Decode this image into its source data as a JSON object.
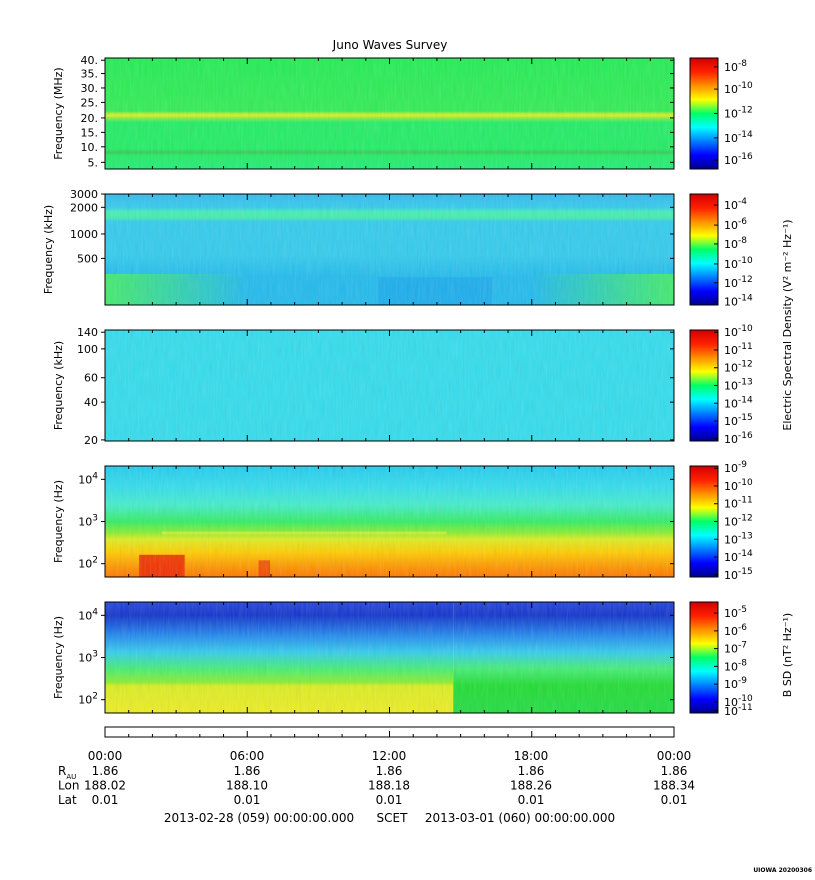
{
  "title": "Juno Waves Survey",
  "stamp": "UIOWA 20200306",
  "scet_label": "SCET",
  "start_label": "2013-02-28 (059) 00:00:00.000",
  "end_label": "2013-03-01 (060) 00:00:00.000",
  "colorbar_axis_labels": {
    "electric": "Electric Spectral Density (V² m⁻² Hz⁻¹)",
    "magnetic": "B SD (nT² Hz⁻¹)"
  },
  "ephemeris": {
    "time_ticks": [
      "00:00",
      "06:00",
      "12:00",
      "18:00",
      "00:00"
    ],
    "rows": [
      {
        "label": "RAU",
        "label_main": "R",
        "label_sub": "AU",
        "values": [
          "1.86",
          "1.86",
          "1.86",
          "1.86",
          "1.86"
        ]
      },
      {
        "label": "Lon",
        "label_main": "Lon",
        "label_sub": "",
        "values": [
          "188.02",
          "188.10",
          "188.18",
          "188.26",
          "188.34"
        ]
      },
      {
        "label": "Lat",
        "label_main": "Lat",
        "label_sub": "",
        "values": [
          "0.01",
          "0.01",
          "0.01",
          "0.01",
          "0.01"
        ]
      }
    ]
  },
  "chart_data": [
    {
      "type": "heatmap",
      "title": "Juno Waves Survey",
      "ylabel": "Frequency (MHz)",
      "yscale": "linear",
      "ylim": [
        3.5,
        41
      ],
      "y_ticks": [
        "40.",
        "35.",
        "30.",
        "25.",
        "20.",
        "15.",
        "10.",
        "5."
      ],
      "colorbar": {
        "ticks": [
          "10-8",
          "10-10",
          "10-12",
          "10-14",
          "10-16"
        ]
      },
      "description": "near-uniform green background with yellow band near 21 MHz"
    },
    {
      "type": "heatmap",
      "ylabel": "Frequency (kHz)",
      "yscale": "log",
      "ylim": [
        150,
        3000
      ],
      "y_ticks": [
        "3000",
        "2000",
        "1000",
        "500"
      ],
      "colorbar": {
        "ticks": [
          "10-4",
          "10-6",
          "10-8",
          "10-10",
          "10-12",
          "10-14"
        ]
      },
      "description": "mostly cyan/blue, green band near 1600 kHz, green near bottom at start and end"
    },
    {
      "type": "heatmap",
      "ylabel": "Frequency (kHz)",
      "yscale": "log",
      "ylim": [
        20,
        140
      ],
      "y_ticks": [
        "140",
        "100",
        "60",
        "40",
        "20"
      ],
      "colorbar": {
        "ticks": [
          "10-10",
          "10-11",
          "10-12",
          "10-13",
          "10-14",
          "10-15",
          "10-16"
        ]
      },
      "description": "uniform cyan"
    },
    {
      "type": "heatmap",
      "ylabel": "Frequency (Hz)",
      "yscale": "log",
      "ylim": [
        50,
        20000
      ],
      "y_ticks": [
        "10^4",
        "10^3",
        "10^2"
      ],
      "colorbar": {
        "ticks": [
          "10-9",
          "10-10",
          "10-11",
          "10-12",
          "10-13",
          "10-14",
          "10-15"
        ]
      },
      "description": "cyan at top, green mid, yellow/orange at low frequency, red patches early in day"
    },
    {
      "type": "heatmap",
      "ylabel": "Frequency (Hz)",
      "yscale": "log",
      "ylim": [
        50,
        20000
      ],
      "y_ticks": [
        "10^4",
        "10^3",
        "10^2"
      ],
      "colorbar": {
        "ticks": [
          "10-5",
          "10-6",
          "10-7",
          "10-8",
          "10-9",
          "10-10",
          "10-11"
        ]
      },
      "description": "blue at top, cyan/green mid, yellow band at low frequency ending near 14:45 UT"
    }
  ]
}
